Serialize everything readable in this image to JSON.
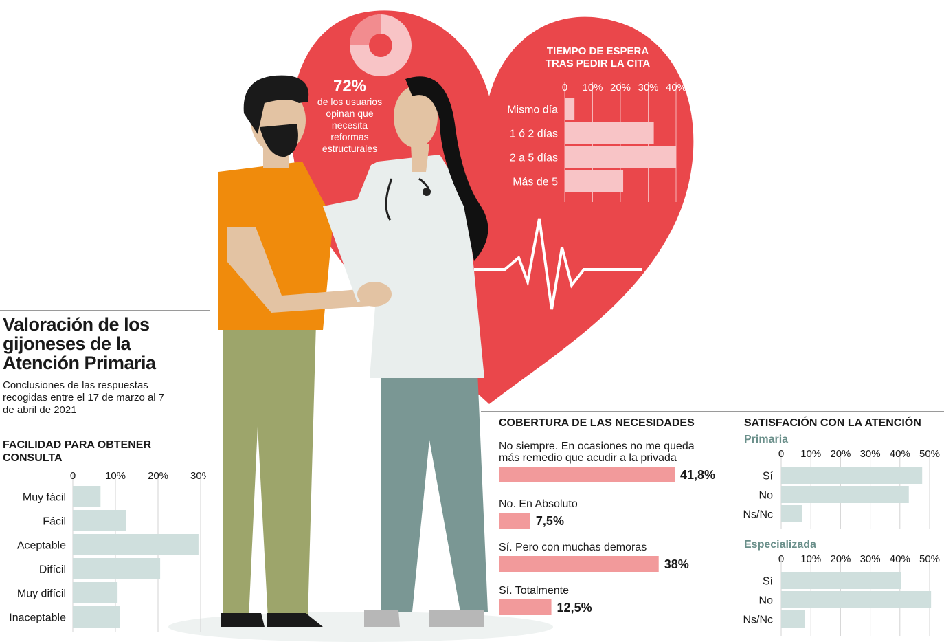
{
  "header": {
    "title": "Valoración de los gijoneses de la Atención Primaria",
    "subtitle": "Conclusiones de las respuestas recogidas entre el 17 de marzo al 7 de abril de 2021"
  },
  "annotation": {
    "percent": "72%",
    "text": "de los usuarios opinan que necesita reformas estructurales"
  },
  "colors": {
    "heart": "#ea474b",
    "heart_bar": "#f8c4c6",
    "coverage_bar": "#f29a9b",
    "teal_bar": "#cfdfdd",
    "teal_label": "#6a8f8a"
  },
  "chart_data": [
    {
      "type": "bar",
      "orientation": "horizontal",
      "title": "TIEMPO DE ESPERA TRAS PEDIR LA CITA",
      "categories": [
        "Mismo día",
        "1 ó 2 días",
        "2 a 5 días",
        "Más de 5"
      ],
      "values": [
        3.5,
        32,
        40,
        21
      ],
      "ticks": [
        "0",
        "10%",
        "20%",
        "30%",
        "40%"
      ],
      "xlim": [
        0,
        40
      ]
    },
    {
      "type": "bar",
      "orientation": "horizontal",
      "title": "FACILIDAD PARA OBTENER CONSULTA",
      "categories": [
        "Muy fácil",
        "Fácil",
        "Aceptable",
        "Difícil",
        "Muy difícil",
        "Inaceptable"
      ],
      "values": [
        6.5,
        12.5,
        29.5,
        20.5,
        10.5,
        11
      ],
      "ticks": [
        "0",
        "10%",
        "20%",
        "30%"
      ],
      "xlim": [
        0,
        30
      ]
    },
    {
      "type": "bar",
      "orientation": "horizontal",
      "title": "COBERTURA DE LAS NECESIDADES",
      "categories": [
        "No siempre. En ocasiones no me queda más remedio que acudir a la privada",
        "No. En Absoluto",
        "Sí. Pero con muchas demoras",
        "Sí. Totalmente"
      ],
      "values": [
        41.8,
        7.5,
        38,
        12.5
      ],
      "value_labels": [
        "41,8%",
        "7,5%",
        "38%",
        "12,5%"
      ]
    },
    {
      "type": "bar",
      "orientation": "horizontal",
      "title": "SATISFACIÓN CON LA ATENCIÓN",
      "subtitle": "Primaria",
      "categories": [
        "Sí",
        "No",
        "Ns/Nc"
      ],
      "values": [
        47.5,
        43,
        7
      ],
      "ticks": [
        "0",
        "10%",
        "20%",
        "30%",
        "40%",
        "50%"
      ],
      "xlim": [
        0,
        50
      ]
    },
    {
      "type": "bar",
      "orientation": "horizontal",
      "subtitle": "Especializada",
      "categories": [
        "Sí",
        "No",
        "Ns/Nc"
      ],
      "values": [
        40.5,
        50.5,
        8
      ],
      "ticks": [
        "0",
        "10%",
        "20%",
        "30%",
        "40%",
        "50%"
      ],
      "xlim": [
        0,
        50
      ]
    }
  ]
}
